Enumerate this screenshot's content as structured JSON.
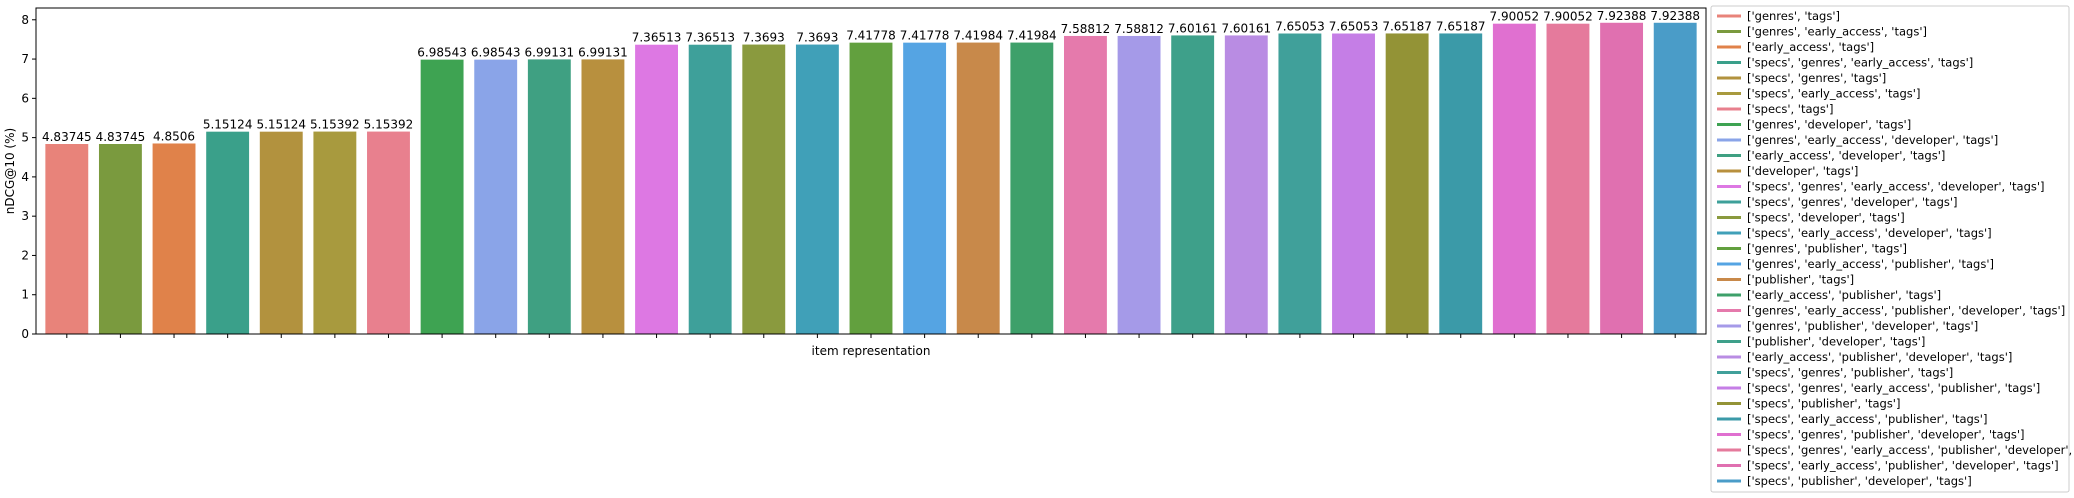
{
  "chart_data": {
    "type": "bar",
    "title": "",
    "xlabel": "item representation",
    "ylabel": "nDCG@10 (%)",
    "ylim": [
      0,
      8.3
    ],
    "yticks": [
      0,
      1,
      2,
      3,
      4,
      5,
      6,
      7,
      8
    ],
    "grid": false,
    "legend_position": "outside-right",
    "categories": [
      "['genres', 'tags']",
      "['genres', 'early_access', 'tags']",
      "['early_access', 'tags']",
      "['specs', 'genres', 'early_access', 'tags']",
      "['specs', 'genres', 'tags']",
      "['specs', 'early_access', 'tags']",
      "['specs', 'tags']",
      "['genres', 'developer', 'tags']",
      "['genres', 'early_access', 'developer', 'tags']",
      "['early_access', 'developer', 'tags']",
      "['developer', 'tags']",
      "['specs', 'genres', 'early_access', 'developer', 'tags']",
      "['specs', 'genres', 'developer', 'tags']",
      "['specs', 'developer', 'tags']",
      "['specs', 'early_access', 'developer', 'tags']",
      "['genres', 'publisher', 'tags']",
      "['genres', 'early_access', 'publisher', 'tags']",
      "['publisher', 'tags']",
      "['early_access', 'publisher', 'tags']",
      "['genres', 'early_access', 'publisher', 'developer', 'tags']",
      "['genres', 'publisher', 'developer', 'tags']",
      "['publisher', 'developer', 'tags']",
      "['early_access', 'publisher', 'developer', 'tags']",
      "['specs', 'genres', 'publisher', 'tags']",
      "['specs', 'genres', 'early_access', 'publisher', 'tags']",
      "['specs', 'publisher', 'tags']",
      "['specs', 'early_access', 'publisher', 'tags']",
      "['specs', 'genres', 'publisher', 'developer', 'tags']",
      "['specs', 'genres', 'early_access', 'publisher', 'developer', 'tags']",
      "['specs', 'early_access', 'publisher', 'developer', 'tags']",
      "['specs', 'publisher', 'developer', 'tags']"
    ],
    "values": [
      4.83745,
      4.83745,
      4.8506,
      5.15124,
      5.15124,
      5.15392,
      5.15392,
      6.98543,
      6.98543,
      6.99131,
      6.99131,
      7.36513,
      7.36513,
      7.3693,
      7.3693,
      7.41778,
      7.41778,
      7.41984,
      7.41984,
      7.58812,
      7.58812,
      7.60161,
      7.60161,
      7.65053,
      7.65053,
      7.65187,
      7.65187,
      7.90052,
      7.90052,
      7.92388,
      7.92388
    ],
    "value_labels": [
      "4.83745",
      "4.83745",
      "4.8506",
      "5.15124",
      "5.15124",
      "5.15392",
      "5.15392",
      "6.98543",
      "6.98543",
      "6.99131",
      "6.99131",
      "7.36513",
      "7.36513",
      "7.3693",
      "7.3693",
      "7.41778",
      "7.41778",
      "7.41984",
      "7.41984",
      "7.58812",
      "7.58812",
      "7.60161",
      "7.60161",
      "7.65053",
      "7.65053",
      "7.65187",
      "7.65187",
      "7.90052",
      "7.90052",
      "7.92388",
      "7.92388"
    ],
    "colors": [
      "#e8837a",
      "#7a9a3e",
      "#e0824a",
      "#3aa08a",
      "#b2923e",
      "#a89a3e",
      "#e8808e",
      "#3ea352",
      "#8aa4e8",
      "#3fa082",
      "#b8903e",
      "#dd78e3",
      "#3ea09a",
      "#8a9a3e",
      "#40a0b8",
      "#62a03e",
      "#55a4e3",
      "#c8894a",
      "#3ea06a",
      "#e57aac",
      "#a59ae8",
      "#3ea08a",
      "#b98ce3",
      "#40a09a",
      "#c57ee6",
      "#939336",
      "#3b9aa8",
      "#e070d0",
      "#e57a9c",
      "#e070b0",
      "#4a9cc8"
    ]
  }
}
